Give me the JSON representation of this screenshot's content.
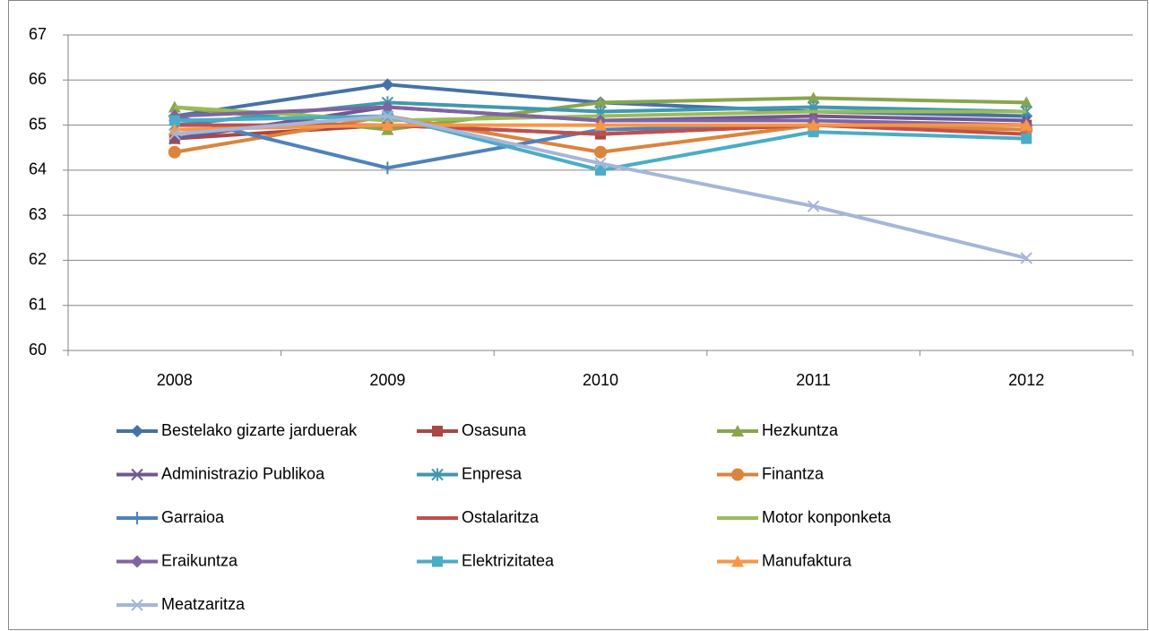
{
  "chart_data": {
    "type": "line",
    "categories": [
      "2008",
      "2009",
      "2010",
      "2011",
      "2012"
    ],
    "ylim": [
      60,
      67
    ],
    "yticks": [
      60,
      61,
      62,
      63,
      64,
      65,
      66,
      67
    ],
    "grid": true,
    "legend": "bottom",
    "series": [
      {
        "name": "Bestelako gizarte jarduerak",
        "color": "#4572a7",
        "marker": "diamond",
        "values": [
          65.2,
          65.9,
          65.5,
          65.3,
          65.2
        ]
      },
      {
        "name": "Osasuna",
        "color": "#aa4643",
        "marker": "square",
        "values": [
          64.7,
          65.0,
          64.8,
          65.0,
          65.0
        ]
      },
      {
        "name": "Hezkuntza",
        "color": "#89a54e",
        "marker": "triangle",
        "values": [
          65.4,
          64.9,
          65.5,
          65.6,
          65.5
        ]
      },
      {
        "name": "Administrazio Publikoa",
        "color": "#71588f",
        "marker": "x",
        "values": [
          64.7,
          65.4,
          65.1,
          65.2,
          65.1
        ]
      },
      {
        "name": "Enpresa",
        "color": "#4198af",
        "marker": "star",
        "values": [
          65.0,
          65.5,
          65.3,
          65.4,
          65.3
        ]
      },
      {
        "name": "Finantza",
        "color": "#db843d",
        "marker": "circle",
        "values": [
          64.4,
          65.2,
          64.4,
          65.0,
          64.9
        ]
      },
      {
        "name": "Garraioa",
        "color": "#4f81bd",
        "marker": "plus",
        "values": [
          65.2,
          64.05,
          64.9,
          65.0,
          65.0
        ]
      },
      {
        "name": "Ostalaritza",
        "color": "#c0504d",
        "marker": "none",
        "values": [
          65.0,
          65.0,
          64.8,
          65.0,
          64.8
        ]
      },
      {
        "name": "Motor konponketa",
        "color": "#9bbb59",
        "marker": "none",
        "values": [
          65.4,
          65.1,
          65.2,
          65.3,
          65.3
        ]
      },
      {
        "name": "Eraikuntza",
        "color": "#8064a2",
        "marker": "diamond",
        "values": [
          65.2,
          65.4,
          65.1,
          65.1,
          65.0
        ]
      },
      {
        "name": "Elektrizitatea",
        "color": "#4bacc6",
        "marker": "square",
        "values": [
          65.1,
          65.2,
          64.0,
          64.85,
          64.7
        ]
      },
      {
        "name": "Manufaktura",
        "color": "#f79646",
        "marker": "triangle",
        "values": [
          64.9,
          65.0,
          65.0,
          65.0,
          65.0
        ]
      },
      {
        "name": "Meatzaritza",
        "color": "#a5b6d9",
        "marker": "x",
        "values": [
          64.8,
          65.2,
          64.15,
          63.2,
          62.05
        ]
      }
    ]
  }
}
